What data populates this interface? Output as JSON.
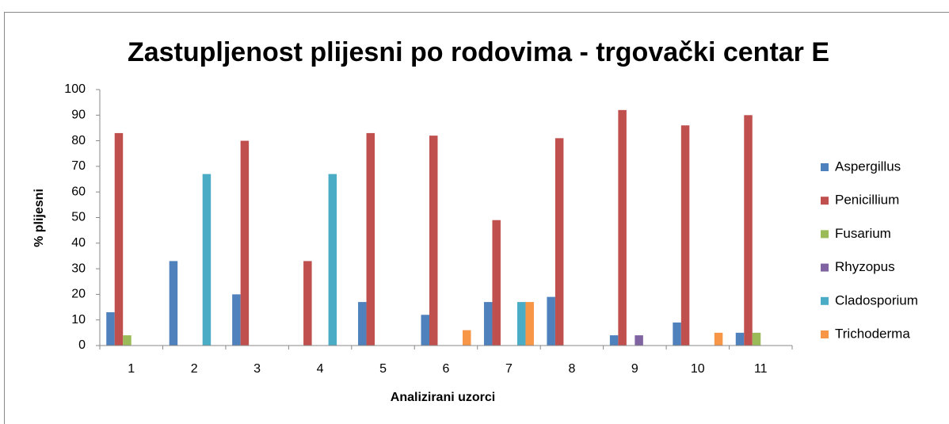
{
  "chart_data": {
    "type": "bar",
    "title": "Zastupljenost plijesni po rodovima - trgovački centar E",
    "x_label": "Analizirani uzorci",
    "y_label": "% plijesni",
    "categories": [
      "1",
      "2",
      "3",
      "4",
      "5",
      "6",
      "7",
      "8",
      "9",
      "10",
      "11"
    ],
    "series": [
      {
        "name": "Aspergillus",
        "color": "#4f81bd",
        "values": [
          13,
          33,
          20,
          0,
          17,
          12,
          17,
          19,
          4,
          9,
          5
        ]
      },
      {
        "name": "Penicillium",
        "color": "#c0504d",
        "values": [
          83,
          0,
          80,
          33,
          83,
          82,
          49,
          81,
          92,
          86,
          90
        ]
      },
      {
        "name": "Fusarium",
        "color": "#9bbb59",
        "values": [
          4,
          0,
          0,
          0,
          0,
          0,
          0,
          0,
          0,
          0,
          5
        ]
      },
      {
        "name": "Rhyzopus",
        "color": "#8064a2",
        "values": [
          0,
          0,
          0,
          0,
          0,
          0,
          0,
          0,
          4,
          0,
          0
        ]
      },
      {
        "name": "Cladosporium",
        "color": "#4bacc6",
        "values": [
          0,
          67,
          0,
          67,
          0,
          0,
          17,
          0,
          0,
          0,
          0
        ]
      },
      {
        "name": "Trichoderma",
        "color": "#f79646",
        "values": [
          0,
          0,
          0,
          0,
          0,
          6,
          17,
          0,
          0,
          5,
          0
        ]
      }
    ],
    "ylim": [
      0,
      100
    ],
    "yticks": [
      0,
      10,
      20,
      30,
      40,
      50,
      60,
      70,
      80,
      90,
      100
    ],
    "grid": false,
    "legend": "right"
  }
}
